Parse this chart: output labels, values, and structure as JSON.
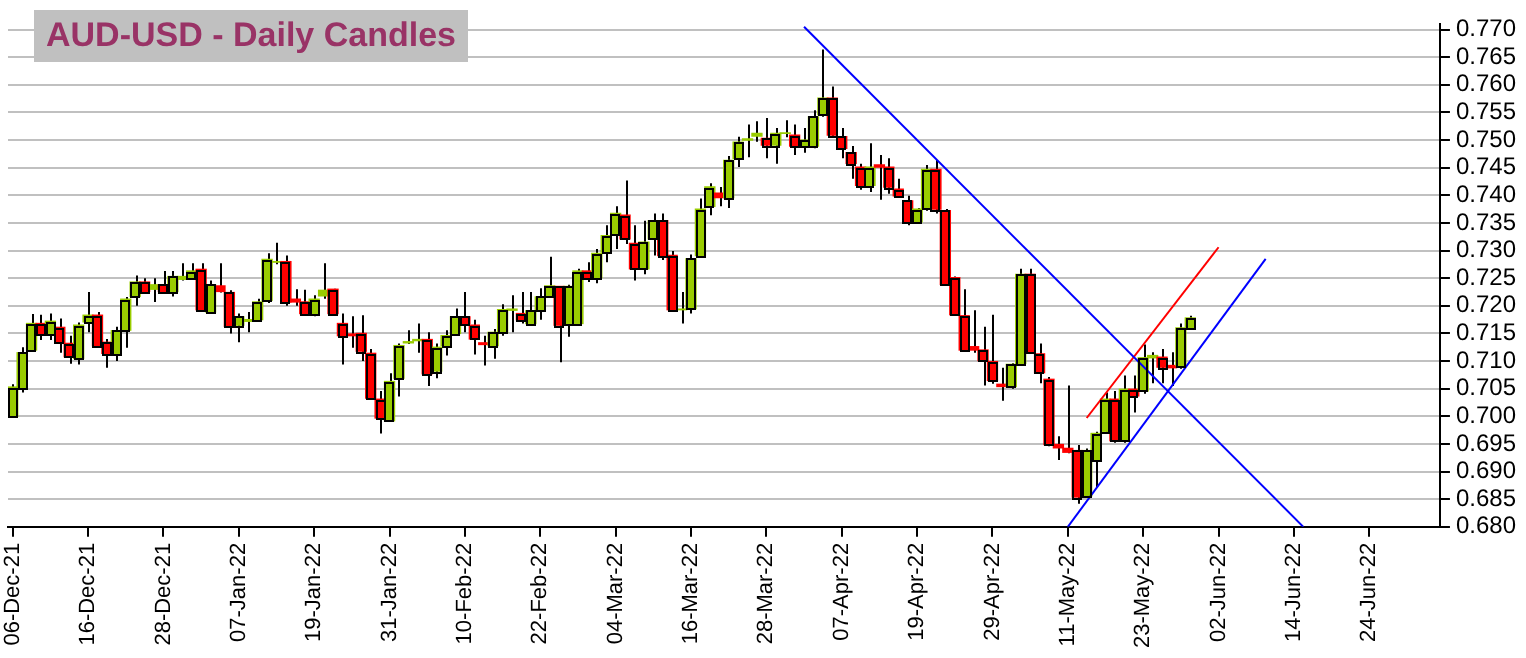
{
  "chart_data": {
    "type": "candlestick",
    "title": "AUD-USD - Daily Candles",
    "categories": [
      "06-Dec-21",
      null,
      null,
      null,
      null,
      null,
      null,
      null,
      "16-Dec-21",
      null,
      null,
      null,
      null,
      null,
      null,
      null,
      "28-Dec-21",
      null,
      null,
      null,
      null,
      null,
      null,
      null,
      "07-Jan-22",
      null,
      null,
      null,
      null,
      null,
      null,
      null,
      "19-Jan-22",
      null,
      null,
      null,
      null,
      null,
      null,
      null,
      "31-Jan-22",
      null,
      null,
      null,
      null,
      null,
      null,
      null,
      "10-Feb-22",
      null,
      null,
      null,
      null,
      null,
      null,
      null,
      "22-Feb-22",
      null,
      null,
      null,
      null,
      null,
      null,
      null,
      "04-Mar-22",
      null,
      null,
      null,
      null,
      null,
      null,
      null,
      "16-Mar-22",
      null,
      null,
      null,
      null,
      null,
      null,
      null,
      "28-Mar-22",
      null,
      null,
      null,
      null,
      null,
      null,
      null,
      "07-Apr-22",
      null,
      null,
      null,
      null,
      null,
      null,
      null,
      "19-Apr-22",
      null,
      null,
      null,
      null,
      null,
      null,
      null,
      "29-Apr-22",
      null,
      null,
      null,
      null,
      null,
      null,
      null,
      "11-May-22",
      null,
      null,
      null,
      null,
      null,
      null,
      null,
      "23-May-22",
      null,
      null,
      null,
      null,
      null,
      null,
      null,
      "02-Jun-22",
      null,
      null,
      null,
      null,
      null,
      null,
      null,
      "14-Jun-22",
      null,
      null,
      null,
      null,
      null,
      null,
      null,
      "24-Jun-22",
      null,
      null,
      null,
      null,
      null,
      null,
      null
    ],
    "ylim": [
      0.68,
      0.771
    ],
    "yticks": [
      {
        "value": 0.68,
        "label": "0.680"
      },
      {
        "value": 0.685,
        "label": "0.685"
      },
      {
        "value": 0.69,
        "label": "0.690"
      },
      {
        "value": 0.695,
        "label": "0.695"
      },
      {
        "value": 0.7,
        "label": "0.700"
      },
      {
        "value": 0.705,
        "label": "0.705"
      },
      {
        "value": 0.71,
        "label": "0.710"
      },
      {
        "value": 0.715,
        "label": "0.715"
      },
      {
        "value": 0.72,
        "label": "0.720"
      },
      {
        "value": 0.725,
        "label": "0.725"
      },
      {
        "value": 0.73,
        "label": "0.730"
      },
      {
        "value": 0.735,
        "label": "0.735"
      },
      {
        "value": 0.74,
        "label": "0.740"
      },
      {
        "value": 0.745,
        "label": "0.745"
      },
      {
        "value": 0.75,
        "label": "0.750"
      },
      {
        "value": 0.755,
        "label": "0.755"
      },
      {
        "value": 0.76,
        "label": "0.760"
      },
      {
        "value": 0.765,
        "label": "0.765"
      },
      {
        "value": 0.77,
        "label": "0.770"
      }
    ],
    "grid": "y",
    "ohlc": [
      [
        0.7,
        0.7058,
        0.6998,
        0.7053
      ],
      [
        0.7051,
        0.7125,
        0.7043,
        0.7115
      ],
      [
        0.712,
        0.7185,
        0.712,
        0.7168
      ],
      [
        0.7168,
        0.7184,
        0.7138,
        0.715
      ],
      [
        0.715,
        0.7186,
        0.7138,
        0.7172
      ],
      [
        0.7161,
        0.7177,
        0.7115,
        0.7134
      ],
      [
        0.7132,
        0.7146,
        0.7095,
        0.7108
      ],
      [
        0.7105,
        0.717,
        0.7094,
        0.7165
      ],
      [
        0.7171,
        0.7225,
        0.7152,
        0.7183
      ],
      [
        0.7183,
        0.7189,
        0.7126,
        0.7128
      ],
      [
        0.7134,
        0.714,
        0.7088,
        0.7114
      ],
      [
        0.7114,
        0.7162,
        0.71,
        0.7155
      ],
      [
        0.7156,
        0.7216,
        0.7124,
        0.7212
      ],
      [
        0.7217,
        0.7255,
        0.72,
        0.7243
      ],
      [
        0.7243,
        0.725,
        0.7225,
        0.7226
      ],
      [
        0.723,
        0.725,
        0.7207,
        0.7238
      ],
      [
        0.7238,
        0.7263,
        0.7223,
        0.7226
      ],
      [
        0.7226,
        0.7263,
        0.7217,
        0.7253
      ],
      [
        0.7248,
        0.7277,
        0.7246,
        0.7253
      ],
      [
        0.725,
        0.7277,
        0.7248,
        0.7263
      ],
      [
        0.7266,
        0.7277,
        0.7189,
        0.7193
      ],
      [
        0.7189,
        0.7246,
        0.7188,
        0.7238
      ],
      [
        0.7236,
        0.7277,
        0.7224,
        0.7226
      ],
      [
        0.7224,
        0.7228,
        0.715,
        0.7163
      ],
      [
        0.7165,
        0.7186,
        0.7134,
        0.718
      ],
      [
        0.7172,
        0.7189,
        0.7152,
        0.7175
      ],
      [
        0.7175,
        0.7213,
        0.7171,
        0.7207
      ],
      [
        0.721,
        0.7295,
        0.7205,
        0.7284
      ],
      [
        0.7279,
        0.7314,
        0.7275,
        0.728
      ],
      [
        0.728,
        0.7291,
        0.72,
        0.7207
      ],
      [
        0.7212,
        0.723,
        0.72,
        0.7207
      ],
      [
        0.7207,
        0.7229,
        0.7182,
        0.7186
      ],
      [
        0.7186,
        0.7219,
        0.7181,
        0.7212
      ],
      [
        0.7218,
        0.7277,
        0.7213,
        0.7228
      ],
      [
        0.723,
        0.7231,
        0.7184,
        0.7186
      ],
      [
        0.7168,
        0.7186,
        0.7094,
        0.7146
      ],
      [
        0.7149,
        0.7181,
        0.7124,
        0.7146
      ],
      [
        0.715,
        0.7183,
        0.71,
        0.7118
      ],
      [
        0.7114,
        0.7122,
        0.7031,
        0.7033
      ],
      [
        0.7031,
        0.7046,
        0.6969,
        0.6997
      ],
      [
        0.6992,
        0.7078,
        0.699,
        0.7063
      ],
      [
        0.7069,
        0.7132,
        0.7036,
        0.7128
      ],
      [
        0.7133,
        0.7156,
        0.7131,
        0.7135
      ],
      [
        0.7137,
        0.7168,
        0.7115,
        0.7139
      ],
      [
        0.7139,
        0.7152,
        0.7055,
        0.7077
      ],
      [
        0.7082,
        0.7132,
        0.7069,
        0.7125
      ],
      [
        0.7128,
        0.7156,
        0.711,
        0.7146
      ],
      [
        0.715,
        0.7195,
        0.7146,
        0.718
      ],
      [
        0.718,
        0.7225,
        0.7152,
        0.7168
      ],
      [
        0.7165,
        0.7175,
        0.7112,
        0.714
      ],
      [
        0.7133,
        0.7146,
        0.7092,
        0.713
      ],
      [
        0.7128,
        0.7158,
        0.7104,
        0.7152
      ],
      [
        0.7152,
        0.7203,
        0.7146,
        0.7193
      ],
      [
        0.7192,
        0.7219,
        0.7152,
        0.7194
      ],
      [
        0.7186,
        0.7225,
        0.7168,
        0.7175
      ],
      [
        0.7168,
        0.7225,
        0.7167,
        0.7191
      ],
      [
        0.7193,
        0.7232,
        0.7175,
        0.7216
      ],
      [
        0.7218,
        0.7289,
        0.7217,
        0.7236
      ],
      [
        0.7235,
        0.7236,
        0.7098,
        0.7165
      ],
      [
        0.7168,
        0.7238,
        0.7144,
        0.7235
      ],
      [
        0.7168,
        0.7267,
        0.7165,
        0.7263
      ],
      [
        0.7263,
        0.7279,
        0.7243,
        0.7251
      ],
      [
        0.7251,
        0.7303,
        0.7241,
        0.7295
      ],
      [
        0.7297,
        0.7346,
        0.7279,
        0.7327
      ],
      [
        0.7331,
        0.738,
        0.7303,
        0.7367
      ],
      [
        0.7364,
        0.7427,
        0.7312,
        0.7321
      ],
      [
        0.7313,
        0.7346,
        0.7246,
        0.7267
      ],
      [
        0.7267,
        0.7354,
        0.7257,
        0.7315
      ],
      [
        0.7321,
        0.7367,
        0.7291,
        0.7354
      ],
      [
        0.7354,
        0.7367,
        0.7283,
        0.7291
      ],
      [
        0.7291,
        0.7299,
        0.7189,
        0.7193
      ],
      [
        0.7193,
        0.7225,
        0.7168,
        0.7194
      ],
      [
        0.7195,
        0.7293,
        0.7186,
        0.7285
      ],
      [
        0.7291,
        0.7394,
        0.7289,
        0.7375
      ],
      [
        0.738,
        0.7422,
        0.7364,
        0.7415
      ],
      [
        0.7404,
        0.7415,
        0.738,
        0.7396
      ],
      [
        0.7396,
        0.7471,
        0.7377,
        0.7463
      ],
      [
        0.7467,
        0.7506,
        0.7451,
        0.7496
      ],
      [
        0.75,
        0.7528,
        0.7469,
        0.7502
      ],
      [
        0.7507,
        0.7534,
        0.7497,
        0.7512
      ],
      [
        0.7503,
        0.754,
        0.7467,
        0.7491
      ],
      [
        0.7491,
        0.7522,
        0.7457,
        0.7512
      ],
      [
        0.7512,
        0.7536,
        0.7505,
        0.7513
      ],
      [
        0.7509,
        0.7528,
        0.7473,
        0.7489
      ],
      [
        0.7489,
        0.7522,
        0.7477,
        0.75
      ],
      [
        0.7489,
        0.7554,
        0.7485,
        0.7542
      ],
      [
        0.7546,
        0.7664,
        0.7542,
        0.7576
      ],
      [
        0.7576,
        0.7597,
        0.7506,
        0.7509
      ],
      [
        0.7506,
        0.7522,
        0.7467,
        0.7485
      ],
      [
        0.7477,
        0.7489,
        0.743,
        0.7458
      ],
      [
        0.7451,
        0.7457,
        0.741,
        0.7418
      ],
      [
        0.7418,
        0.7494,
        0.7406,
        0.7451
      ],
      [
        0.7455,
        0.7473,
        0.7392,
        0.7451
      ],
      [
        0.7451,
        0.7467,
        0.7403,
        0.7415
      ],
      [
        0.7411,
        0.743,
        0.7396,
        0.7399
      ],
      [
        0.739,
        0.7399,
        0.7346,
        0.7352
      ],
      [
        0.7352,
        0.7377,
        0.7348,
        0.7375
      ],
      [
        0.7376,
        0.7455,
        0.7372,
        0.7447
      ],
      [
        0.7447,
        0.7464,
        0.7367,
        0.7375
      ],
      [
        0.7372,
        0.7375,
        0.7236,
        0.7239
      ],
      [
        0.7251,
        0.7253,
        0.7182,
        0.7184
      ],
      [
        0.7182,
        0.723,
        0.7118,
        0.712
      ],
      [
        0.7126,
        0.7192,
        0.7115,
        0.712
      ],
      [
        0.712,
        0.7162,
        0.7056,
        0.7101
      ],
      [
        0.7099,
        0.7184,
        0.7059,
        0.7065
      ],
      [
        0.7058,
        0.7088,
        0.7028,
        0.7054
      ],
      [
        0.7054,
        0.7096,
        0.705,
        0.7094
      ],
      [
        0.7096,
        0.7267,
        0.7092,
        0.7257
      ],
      [
        0.7257,
        0.7267,
        0.7113,
        0.7115
      ],
      [
        0.7113,
        0.7132,
        0.706,
        0.7079
      ],
      [
        0.7067,
        0.7071,
        0.6946,
        0.6949
      ],
      [
        0.6949,
        0.6964,
        0.6921,
        0.6943
      ],
      [
        0.6942,
        0.7056,
        0.6933,
        0.6935
      ],
      [
        0.6938,
        0.6948,
        0.6842,
        0.6854
      ],
      [
        0.6856,
        0.6942,
        0.6854,
        0.6938
      ],
      [
        0.6921,
        0.6972,
        0.6872,
        0.6969
      ],
      [
        0.6973,
        0.7043,
        0.6972,
        0.7031
      ],
      [
        0.7031,
        0.7046,
        0.6952,
        0.6956
      ],
      [
        0.6956,
        0.7074,
        0.6952,
        0.7049
      ],
      [
        0.7049,
        0.7074,
        0.7007,
        0.7037
      ],
      [
        0.7046,
        0.713,
        0.7041,
        0.7106
      ],
      [
        0.7106,
        0.7116,
        0.706,
        0.711
      ],
      [
        0.7107,
        0.7122,
        0.706,
        0.7089
      ],
      [
        0.7092,
        0.7116,
        0.7055,
        0.7088
      ],
      [
        0.7092,
        0.7168,
        0.7086,
        0.716
      ],
      [
        0.716,
        0.7182,
        0.7158,
        0.7178
      ],
      null,
      null,
      null,
      null,
      null,
      null,
      null,
      null,
      null,
      null,
      null,
      null,
      null,
      null,
      null,
      null,
      null,
      null,
      null,
      null,
      null,
      null,
      null,
      null,
      null,
      null
    ],
    "colors": [
      "#99cc00",
      "#99cc00",
      "#99cc00",
      "#ff0000",
      "#99cc00",
      "#ff0000",
      "#ff0000",
      "#99cc00",
      "#99cc00",
      "#ff0000",
      "#ff0000",
      "#99cc00",
      "#99cc00",
      "#99cc00",
      "#ff0000",
      "#99cc00",
      "#ff0000",
      "#99cc00",
      "#99cc00",
      "#99cc00",
      "#ff0000",
      "#99cc00",
      "#ff0000",
      "#ff0000",
      "#99cc00",
      "#99cc00",
      "#99cc00",
      "#99cc00",
      "#99cc00",
      "#ff0000",
      "#ff0000",
      "#ff0000",
      "#99cc00",
      "#99cc00",
      "#ff0000",
      "#ff0000",
      "#ff0000",
      "#ff0000",
      "#ff0000",
      "#ff0000",
      "#99cc00",
      "#99cc00",
      "#99cc00",
      "#99cc00",
      "#ff0000",
      "#99cc00",
      "#99cc00",
      "#99cc00",
      "#ff0000",
      "#ff0000",
      "#ff0000",
      "#99cc00",
      "#99cc00",
      "#99cc00",
      "#ff0000",
      "#99cc00",
      "#99cc00",
      "#99cc00",
      "#ff0000",
      "#99cc00",
      "#99cc00",
      "#ff0000",
      "#99cc00",
      "#99cc00",
      "#99cc00",
      "#ff0000",
      "#ff0000",
      "#99cc00",
      "#99cc00",
      "#ff0000",
      "#ff0000",
      "#99cc00",
      "#99cc00",
      "#99cc00",
      "#99cc00",
      "#ff0000",
      "#99cc00",
      "#99cc00",
      "#99cc00",
      "#99cc00",
      "#ff0000",
      "#99cc00",
      "#99cc00",
      "#ff0000",
      "#99cc00",
      "#99cc00",
      "#99cc00",
      "#ff0000",
      "#ff0000",
      "#ff0000",
      "#ff0000",
      "#99cc00",
      "#ff0000",
      "#ff0000",
      "#ff0000",
      "#ff0000",
      "#99cc00",
      "#99cc00",
      "#ff0000",
      "#ff0000",
      "#ff0000",
      "#ff0000",
      "#ff0000",
      "#ff0000",
      "#ff0000",
      "#ff0000",
      "#99cc00",
      "#99cc00",
      "#ff0000",
      "#ff0000",
      "#ff0000",
      "#ff0000",
      "#ff0000",
      "#ff0000",
      "#99cc00",
      "#99cc00",
      "#99cc00",
      "#ff0000",
      "#99cc00",
      "#ff0000",
      "#99cc00",
      "#99cc00",
      "#ff0000",
      "#ff0000",
      "#99cc00",
      "#99cc00",
      null,
      null,
      null,
      null,
      null,
      null,
      null,
      null,
      null,
      null,
      null,
      null,
      null,
      null,
      null,
      null,
      null,
      null,
      null,
      null,
      null,
      null,
      null,
      null,
      null,
      null
    ],
    "series": [
      {
        "type": "line",
        "color": "#0000ff",
        "values": [
          null,
          null,
          null,
          null,
          null,
          null,
          null,
          null,
          null,
          null,
          null,
          null,
          null,
          null,
          null,
          null,
          null,
          null,
          null,
          null,
          null,
          null,
          null,
          null,
          null,
          null,
          null,
          null,
          null,
          null,
          null,
          null,
          null,
          null,
          null,
          null,
          null,
          null,
          null,
          null,
          null,
          null,
          null,
          null,
          null,
          null,
          null,
          null,
          null,
          null,
          null,
          null,
          null,
          null,
          null,
          null,
          null,
          null,
          null,
          null,
          null,
          null,
          null,
          null,
          null,
          null,
          null,
          null,
          null,
          null,
          null,
          null,
          null,
          null,
          null,
          null,
          null,
          null,
          null,
          null,
          null,
          null,
          null,
          null,
          0.7705,
          null,
          null,
          null,
          null,
          null,
          null,
          null,
          null,
          null,
          null,
          null,
          null,
          null,
          null,
          null,
          null,
          null,
          null,
          null,
          null,
          null,
          null,
          null,
          null,
          null,
          null,
          null,
          null,
          null,
          null,
          null,
          null,
          null,
          null,
          null,
          null,
          null,
          null,
          null,
          null,
          null,
          null,
          null,
          null,
          null,
          null,
          null,
          null,
          null,
          null,
          null,
          null,
          0.68,
          null,
          null,
          null,
          null,
          null,
          null,
          null,
          null,
          null,
          null,
          null,
          null,
          null,
          null
        ]
      },
      {
        "type": "line",
        "color": "#0000ff",
        "values": [
          null,
          null,
          null,
          null,
          null,
          null,
          null,
          null,
          null,
          null,
          null,
          null,
          null,
          null,
          null,
          null,
          null,
          null,
          null,
          null,
          null,
          null,
          null,
          null,
          null,
          null,
          null,
          null,
          null,
          null,
          null,
          null,
          null,
          null,
          null,
          null,
          null,
          null,
          null,
          null,
          null,
          null,
          null,
          null,
          null,
          null,
          null,
          null,
          null,
          null,
          null,
          null,
          null,
          null,
          null,
          null,
          null,
          null,
          null,
          null,
          null,
          null,
          null,
          null,
          null,
          null,
          null,
          null,
          null,
          null,
          null,
          null,
          null,
          null,
          null,
          null,
          null,
          null,
          null,
          null,
          null,
          null,
          null,
          null,
          null,
          null,
          null,
          null,
          null,
          null,
          null,
          null,
          null,
          null,
          null,
          null,
          null,
          null,
          null,
          null,
          null,
          null,
          null,
          null,
          null,
          null,
          null,
          null,
          null,
          null,
          null,
          null,
          0.68,
          null,
          null,
          null,
          null,
          null,
          null,
          null,
          null,
          null,
          null,
          null,
          null,
          null,
          null,
          null,
          null,
          null,
          null,
          null,
          null,
          0.7285,
          null,
          null,
          null,
          null,
          null,
          null,
          null,
          null,
          null,
          null,
          null,
          null,
          null,
          null,
          null,
          null,
          null,
          null
        ]
      },
      {
        "type": "line",
        "color": "#ff0000",
        "values": [
          null,
          null,
          null,
          null,
          null,
          null,
          null,
          null,
          null,
          null,
          null,
          null,
          null,
          null,
          null,
          null,
          null,
          null,
          null,
          null,
          null,
          null,
          null,
          null,
          null,
          null,
          null,
          null,
          null,
          null,
          null,
          null,
          null,
          null,
          null,
          null,
          null,
          null,
          null,
          null,
          null,
          null,
          null,
          null,
          null,
          null,
          null,
          null,
          null,
          null,
          null,
          null,
          null,
          null,
          null,
          null,
          null,
          null,
          null,
          null,
          null,
          null,
          null,
          null,
          null,
          null,
          null,
          null,
          null,
          null,
          null,
          null,
          null,
          null,
          null,
          null,
          null,
          null,
          null,
          null,
          null,
          null,
          null,
          null,
          null,
          null,
          null,
          null,
          null,
          null,
          null,
          null,
          null,
          null,
          null,
          null,
          null,
          null,
          null,
          null,
          null,
          null,
          null,
          null,
          null,
          null,
          null,
          null,
          null,
          null,
          null,
          null,
          null,
          null,
          0.6997,
          null,
          null,
          null,
          null,
          null,
          null,
          null,
          null,
          null,
          null,
          null,
          null,
          null,
          0.7306,
          null,
          null,
          null,
          null,
          null,
          null,
          null,
          null,
          null,
          null,
          null,
          null,
          null,
          null,
          null,
          null,
          null,
          null,
          null,
          null,
          null,
          null,
          null
        ]
      }
    ]
  }
}
